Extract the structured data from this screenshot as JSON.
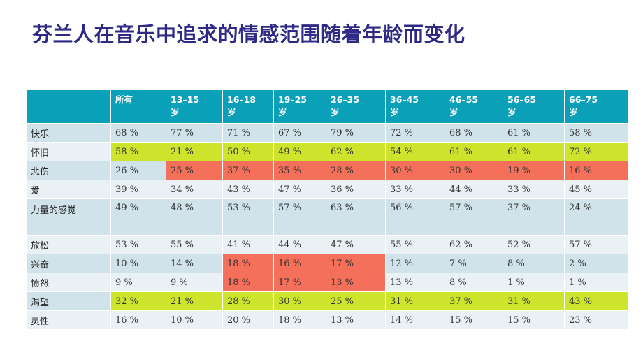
{
  "chart_data": {
    "type": "table",
    "title": "芬兰人在音乐中追求的情感范围随着年龄而变化",
    "columns": [
      "",
      "所有",
      "13–15岁",
      "16–18岁",
      "19–25岁",
      "26–35岁",
      "36–45岁",
      "46–55岁",
      "56–65岁",
      "66–75岁"
    ],
    "header": {
      "corner": "",
      "cols": [
        {
          "line1": "所有",
          "line2": ""
        },
        {
          "line1": "13–15",
          "line2": "岁"
        },
        {
          "line1": "16–18",
          "line2": "岁"
        },
        {
          "line1": "19–25",
          "line2": "岁"
        },
        {
          "line1": "26–35",
          "line2": "岁"
        },
        {
          "line1": "36–45",
          "line2": "岁"
        },
        {
          "line1": "46–55",
          "line2": "岁"
        },
        {
          "line1": "56–65",
          "line2": "岁"
        },
        {
          "line1": "66–75",
          "line2": "岁"
        }
      ]
    },
    "rows": [
      {
        "label": "快乐",
        "cells": [
          "68 %",
          "77 %",
          "71 %",
          "67 %",
          "79 %",
          "72 %",
          "68 %",
          "61 %",
          "58 %"
        ],
        "values": [
          68,
          77,
          71,
          67,
          79,
          72,
          68,
          61,
          58
        ],
        "highlight": [
          "",
          "",
          "",
          "",
          "",
          "",
          "",
          "",
          ""
        ]
      },
      {
        "label": "怀旧",
        "cells": [
          "58 %",
          "21 %",
          "50 %",
          "49 %",
          "62 %",
          "54 %",
          "61 %",
          "61 %",
          "72 %"
        ],
        "values": [
          58,
          21,
          50,
          49,
          62,
          54,
          61,
          61,
          72
        ],
        "highlight": [
          "green",
          "green",
          "green",
          "green",
          "green",
          "green",
          "green",
          "green",
          "green"
        ]
      },
      {
        "label": "悲伤",
        "cells": [
          "26 %",
          "25 %",
          "37 %",
          "35 %",
          "28 %",
          "30 %",
          "30 %",
          "19 %",
          "16 %"
        ],
        "values": [
          26,
          25,
          37,
          35,
          28,
          30,
          30,
          19,
          16
        ],
        "highlight": [
          "",
          "red",
          "red",
          "red",
          "red",
          "red",
          "red",
          "red",
          "red"
        ]
      },
      {
        "label": "爱",
        "cells": [
          "39 %",
          "34 %",
          "43 %",
          "47 %",
          "36 %",
          "33 %",
          "44 %",
          "33 %",
          "45 %"
        ],
        "values": [
          39,
          34,
          43,
          47,
          36,
          33,
          44,
          33,
          45
        ],
        "highlight": [
          "",
          "",
          "",
          "",
          "",
          "",
          "",
          "",
          ""
        ]
      },
      {
        "label": "力量的感觉",
        "cells": [
          "49 %",
          "48 %",
          "53 %",
          "57 %",
          "63 %",
          "56 %",
          "57 %",
          "37 %",
          "24 %"
        ],
        "values": [
          49,
          48,
          53,
          57,
          63,
          56,
          57,
          37,
          24
        ],
        "highlight": [
          "",
          "",
          "",
          "",
          "",
          "",
          "",
          "",
          ""
        ],
        "tall": true
      },
      {
        "label": "放松",
        "cells": [
          "53 %",
          "55 %",
          "41 %",
          "44 %",
          "47 %",
          "55 %",
          "62 %",
          "52 %",
          "57 %"
        ],
        "values": [
          53,
          55,
          41,
          44,
          47,
          55,
          62,
          52,
          57
        ],
        "highlight": [
          "",
          "",
          "",
          "",
          "",
          "",
          "",
          "",
          ""
        ]
      },
      {
        "label": "兴奋",
        "cells": [
          "10 %",
          "14 %",
          "18 %",
          "16 %",
          "17 %",
          "12 %",
          "7 %",
          "8 %",
          "2 %"
        ],
        "values": [
          10,
          14,
          18,
          16,
          17,
          12,
          7,
          8,
          2
        ],
        "highlight": [
          "",
          "",
          "red",
          "red",
          "red",
          "",
          "",
          "",
          ""
        ]
      },
      {
        "label": "愤怒",
        "cells": [
          "9 %",
          "9 %",
          "18 %",
          "17 %",
          "13 %",
          "13 %",
          "8 %",
          "1 %",
          "1 %"
        ],
        "values": [
          9,
          9,
          18,
          17,
          13,
          13,
          8,
          1,
          1
        ],
        "highlight": [
          "",
          "",
          "red",
          "red",
          "red",
          "",
          "",
          "",
          ""
        ]
      },
      {
        "label": "渴望",
        "cells": [
          "32 %",
          "21 %",
          "28 %",
          "30 %",
          "25 %",
          "31 %",
          "37 %",
          "31 %",
          "43 %"
        ],
        "values": [
          32,
          21,
          28,
          30,
          25,
          31,
          37,
          31,
          43
        ],
        "highlight": [
          "green",
          "green",
          "green",
          "green",
          "green",
          "green",
          "green",
          "green",
          "green"
        ]
      },
      {
        "label": "灵性",
        "cells": [
          "16 %",
          "10 %",
          "20 %",
          "18 %",
          "13 %",
          "14 %",
          "15 %",
          "15 %",
          "23 %"
        ],
        "values": [
          16,
          10,
          20,
          18,
          13,
          14,
          15,
          15,
          23
        ],
        "highlight": [
          "",
          "",
          "",
          "",
          "",
          "",
          "",
          "",
          ""
        ]
      }
    ],
    "colors": {
      "title": "#2e2a86",
      "header_bg": "#0aa0b8",
      "row_odd": "#d0e2ea",
      "row_even": "#e9f1f5",
      "highlight_green": "#cce52c",
      "highlight_red": "#f4705a"
    }
  }
}
